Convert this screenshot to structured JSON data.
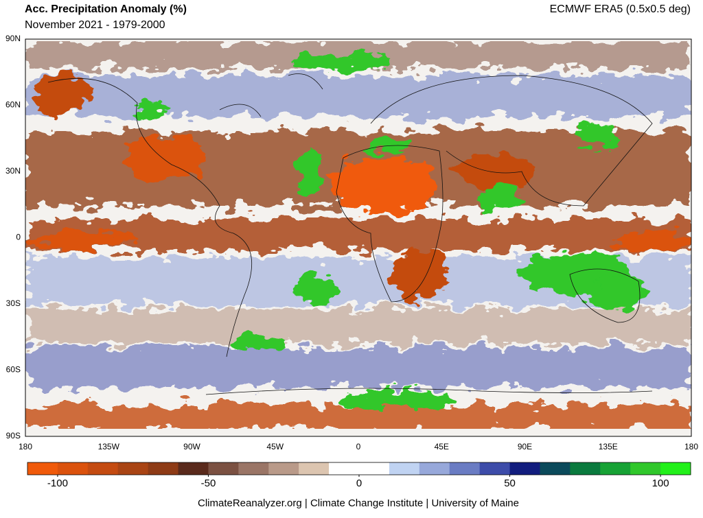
{
  "header": {
    "title": "Acc. Precipitation Anomaly (%)",
    "subtitle": "November 2021 - 1979-2000",
    "source": "ECMWF ERA5 (0.5x0.5 deg)"
  },
  "map": {
    "lat_labels": [
      "90N",
      "60N",
      "30N",
      "0",
      "30S",
      "60S",
      "90S"
    ],
    "lon_labels": [
      "180",
      "135W",
      "90W",
      "45W",
      "0",
      "45E",
      "90E",
      "135E",
      "180"
    ]
  },
  "colorbar": {
    "lim": [
      -110,
      110
    ],
    "ticks": [
      -100,
      -50,
      0,
      50,
      100
    ],
    "colors": [
      "#f05a0a",
      "#db520d",
      "#c44b11",
      "#a94414",
      "#8e3b16",
      "#5a2a1c",
      "#7b5142",
      "#9a7566",
      "#b99a89",
      "#dcc5b0",
      "#ffffff",
      "#ffffff",
      "#c0d3f2",
      "#97a8da",
      "#6a7cc3",
      "#3d4ca9",
      "#121d7e",
      "#0b4a5b",
      "#0a7a3e",
      "#17a235",
      "#30c72b",
      "#22f01a"
    ]
  },
  "footer": "ClimateReanalyzer.org | Climate Change Institute | University of Maine"
}
